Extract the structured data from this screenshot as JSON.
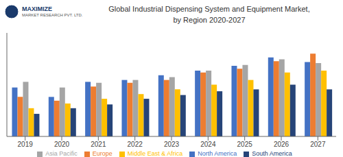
{
  "chart_data": {
    "type": "bar",
    "title": "Global Industrial Dispensing System and Equipment Market,",
    "subtitle": "by Region 2020-2027",
    "annotations": [
      "MAXIMIZE",
      "MARKET RESEARCH PVT. LTD."
    ],
    "categories": [
      "2019",
      "2020",
      "2021",
      "2022",
      "2023",
      "2024",
      "2025",
      "2026",
      "2027"
    ],
    "series": [
      {
        "name": "North America",
        "color": "#4472C4",
        "values": [
          5.2,
          4.2,
          5.8,
          6.0,
          6.5,
          7.0,
          7.5,
          8.4,
          7.9
        ]
      },
      {
        "name": "Europe",
        "color": "#ED7D31",
        "values": [
          4.2,
          3.8,
          5.3,
          5.7,
          6.0,
          6.8,
          7.2,
          8.0,
          8.8
        ]
      },
      {
        "name": "Asia Pacific",
        "color": "#A5A5A5",
        "values": [
          5.8,
          5.2,
          5.7,
          6.0,
          6.3,
          7.0,
          7.6,
          8.2,
          7.8
        ]
      },
      {
        "name": "Middle East & Africa",
        "color": "#FFC000",
        "values": [
          3.0,
          3.5,
          4.0,
          4.5,
          5.0,
          5.5,
          6.0,
          6.8,
          7.0
        ]
      },
      {
        "name": "South America",
        "color": "#264478",
        "values": [
          2.4,
          3.0,
          3.4,
          4.0,
          4.4,
          4.8,
          5.0,
          5.5,
          5.0
        ]
      }
    ],
    "ylim": [
      0,
      11
    ],
    "grid": false,
    "legend": "bottom",
    "tick_labels": "x"
  }
}
